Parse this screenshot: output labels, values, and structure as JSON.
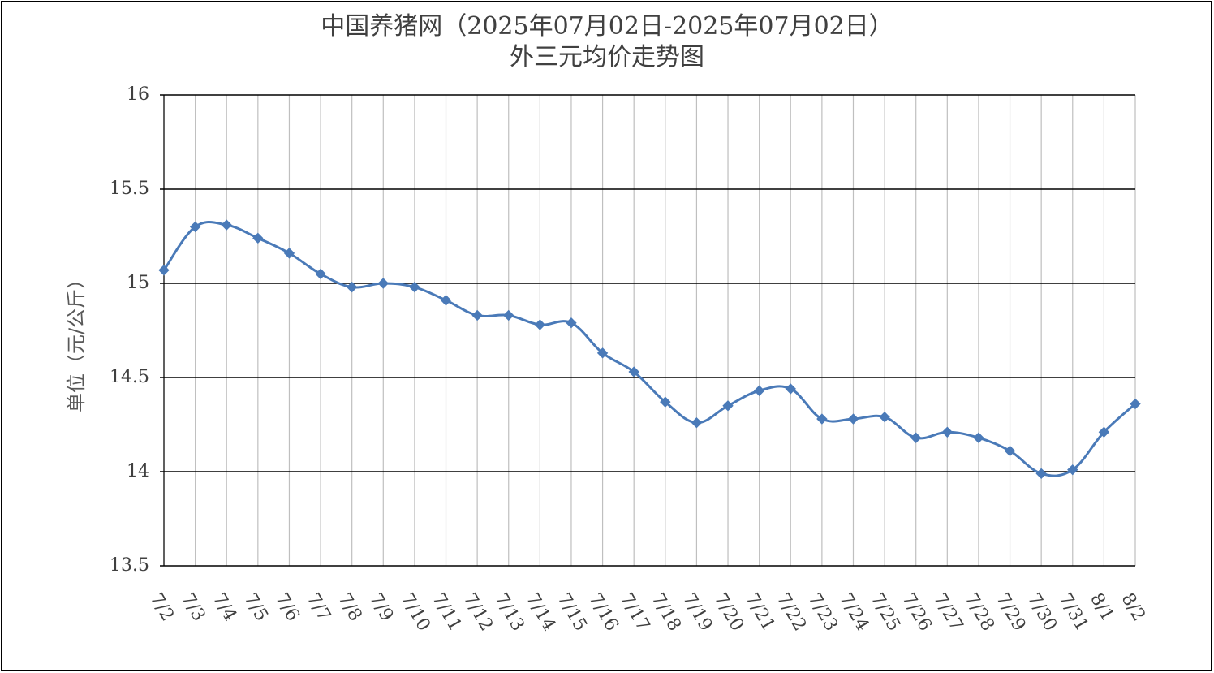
{
  "chart_data": {
    "type": "line",
    "title": "中国养猪网（2025年07月02日-2025年07月02日）",
    "subtitle": "外三元均价走势图",
    "xlabel": "",
    "ylabel": "单位（元/公斤）",
    "ylim": [
      13.5,
      16
    ],
    "yticks": [
      16,
      15.5,
      15,
      14.5,
      14,
      13.5
    ],
    "ytick_labels": [
      "16",
      "15.5",
      "15",
      "14.5",
      "14",
      "13.5"
    ],
    "grid": true,
    "legend": "none",
    "line_color": "#4a7ab8",
    "categories": [
      "7/2",
      "7/3",
      "7/4",
      "7/5",
      "7/6",
      "7/7",
      "7/8",
      "7/9",
      "7/10",
      "7/11",
      "7/12",
      "7/13",
      "7/14",
      "7/15",
      "7/16",
      "7/17",
      "7/18",
      "7/19",
      "7/20",
      "7/21",
      "7/22",
      "7/23",
      "7/24",
      "7/25",
      "7/26",
      "7/27",
      "7/28",
      "7/29",
      "7/30",
      "7/31",
      "8/1",
      "8/2"
    ],
    "series": [
      {
        "values": [
          15.07,
          15.3,
          15.31,
          15.24,
          15.16,
          15.05,
          14.98,
          15.0,
          14.98,
          14.91,
          14.83,
          14.83,
          14.78,
          14.79,
          14.63,
          14.53,
          14.37,
          14.26,
          14.35,
          14.43,
          14.44,
          14.28,
          14.28,
          14.29,
          14.18,
          14.21,
          14.18,
          14.11,
          13.99,
          14.01,
          14.21,
          14.36
        ]
      }
    ]
  }
}
